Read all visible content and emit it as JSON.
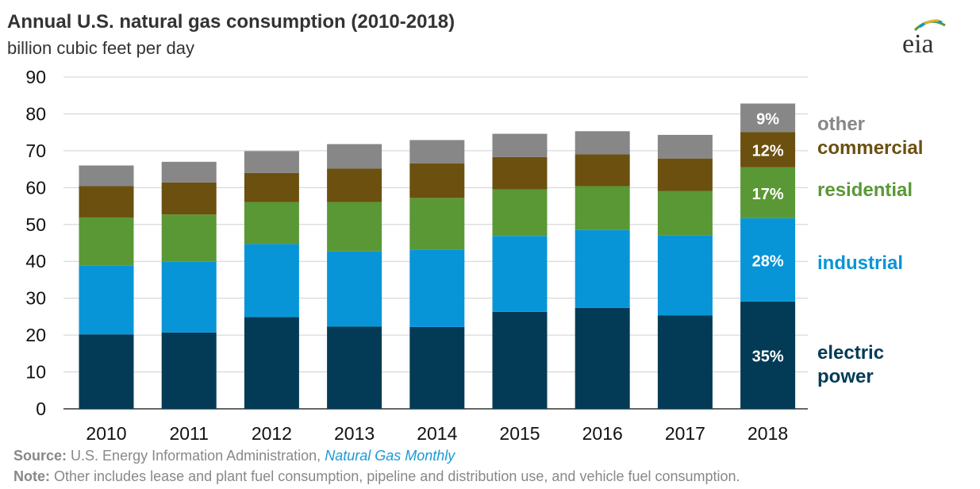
{
  "header": {
    "title": "Annual U.S. natural gas consumption (2010-2018)",
    "subtitle": "billion cubic feet per day"
  },
  "logo": {
    "text": "eia",
    "icon": "eia-logo-icon"
  },
  "footer": {
    "source_label": "Source:",
    "source_text": "U.S. Energy Information Administration,",
    "source_link": "Natural Gas Monthly",
    "note_label": "Note:",
    "note_text": "Other includes lease and plant fuel consumption, pipeline and distribution use, and vehicle fuel consumption."
  },
  "chart_data": {
    "type": "bar",
    "stacked": true,
    "title": "Annual U.S. natural gas consumption (2010-2018)",
    "ylabel": "billion cubic feet per day",
    "xlabel": "",
    "ylim": [
      0,
      90
    ],
    "yticks": [
      0,
      10,
      20,
      30,
      40,
      50,
      60,
      70,
      80,
      90
    ],
    "grid": true,
    "legend_position": "right",
    "categories": [
      "2010",
      "2011",
      "2012",
      "2013",
      "2014",
      "2015",
      "2016",
      "2017",
      "2018"
    ],
    "series": [
      {
        "name": "electric power",
        "color": "#033b56",
        "values": [
          20.2,
          20.7,
          24.9,
          22.3,
          22.2,
          26.3,
          27.4,
          25.3,
          29.1
        ]
      },
      {
        "name": "industrial",
        "color": "#0895d7",
        "values": [
          18.7,
          19.2,
          19.8,
          20.4,
          21.0,
          20.6,
          21.1,
          21.8,
          22.6
        ]
      },
      {
        "name": "residential",
        "color": "#5a9836",
        "values": [
          13.0,
          12.8,
          11.4,
          13.4,
          14.0,
          12.6,
          11.9,
          12.0,
          13.8
        ]
      },
      {
        "name": "commercial",
        "color": "#6b5010",
        "values": [
          8.5,
          8.7,
          7.9,
          9.1,
          9.4,
          8.8,
          8.6,
          8.8,
          9.6
        ]
      },
      {
        "name": "other",
        "color": "#878787",
        "values": [
          5.6,
          5.6,
          5.9,
          6.6,
          6.3,
          6.3,
          6.3,
          6.4,
          7.7
        ]
      }
    ],
    "annotations_2018": [
      "35%",
      "28%",
      "17%",
      "12%",
      "9%"
    ],
    "legend_labels": {
      "other": "other",
      "commercial": "commercial",
      "residential": "residential",
      "industrial": "industrial",
      "electric_power_line1": "electric",
      "electric_power_line2": "power"
    },
    "legend_colors": {
      "other": "#878787",
      "commercial": "#6b5010",
      "residential": "#5a9836",
      "industrial": "#0895d7",
      "electric_power": "#033b56"
    }
  }
}
